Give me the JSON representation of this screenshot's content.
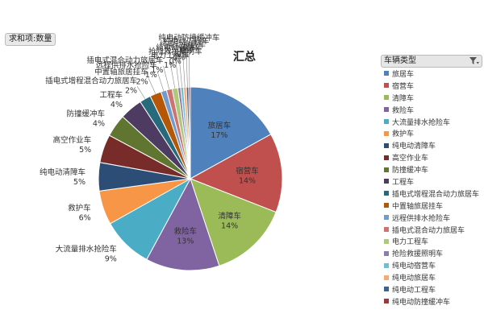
{
  "field_button_label": "求和项:数量",
  "legend_header": "车辆类型",
  "chart_data": {
    "type": "pie",
    "title": "汇总",
    "legend_position": "right",
    "slices": [
      {
        "name": "旅居车",
        "value": 17,
        "label": "17%",
        "color": "#4F81BD"
      },
      {
        "name": "宿营车",
        "value": 14,
        "label": "14%",
        "color": "#C0504D"
      },
      {
        "name": "清障车",
        "value": 14,
        "label": "14%",
        "color": "#9BBB59"
      },
      {
        "name": "救险车",
        "value": 13,
        "label": "13%",
        "color": "#8064A2"
      },
      {
        "name": "大流量排水抢险车",
        "value": 9,
        "label": "9%",
        "color": "#4BACC6"
      },
      {
        "name": "救护车",
        "value": 6,
        "label": "6%",
        "color": "#F79646"
      },
      {
        "name": "纯电动清障车",
        "value": 5,
        "label": "5%",
        "color": "#2C4D75"
      },
      {
        "name": "高空作业车",
        "value": 5,
        "label": "5%",
        "color": "#772C2A"
      },
      {
        "name": "防撞缓冲车",
        "value": 4,
        "label": "4%",
        "color": "#5F7530"
      },
      {
        "name": "工程车",
        "value": 4,
        "label": "4%",
        "color": "#4D3B62"
      },
      {
        "name": "插电式增程混合动力旅居车",
        "value": 2,
        "label": "2%",
        "color": "#276A7C"
      },
      {
        "name": "中置轴旅居挂车",
        "value": 2,
        "label": "2%",
        "color": "#B65708"
      },
      {
        "name": "远程供排水抢险车",
        "value": 1,
        "label": "1%",
        "color": "#729ACA"
      },
      {
        "name": "插电式混合动力旅居车",
        "value": 1,
        "label": "1%",
        "color": "#CD7371"
      },
      {
        "name": "电力工程车",
        "value": 1,
        "label": "1%",
        "color": "#AFC97A"
      },
      {
        "name": "抢险救援照明车",
        "value": 0.5,
        "label": "0%",
        "color": "#8F7AAC"
      },
      {
        "name": "纯电动宿营车",
        "value": 0.5,
        "label": "0%",
        "color": "#6DBFD1"
      },
      {
        "name": "纯电动旅居车",
        "value": 0.5,
        "label": "0%",
        "color": "#F9AA72"
      },
      {
        "name": "纯电动工程车",
        "value": 0.4,
        "label": "0%",
        "color": "#3A6394"
      },
      {
        "name": "纯电动防撞缓冲车",
        "value": 0.3,
        "label": "0%",
        "color": "#9C3A37"
      }
    ]
  }
}
